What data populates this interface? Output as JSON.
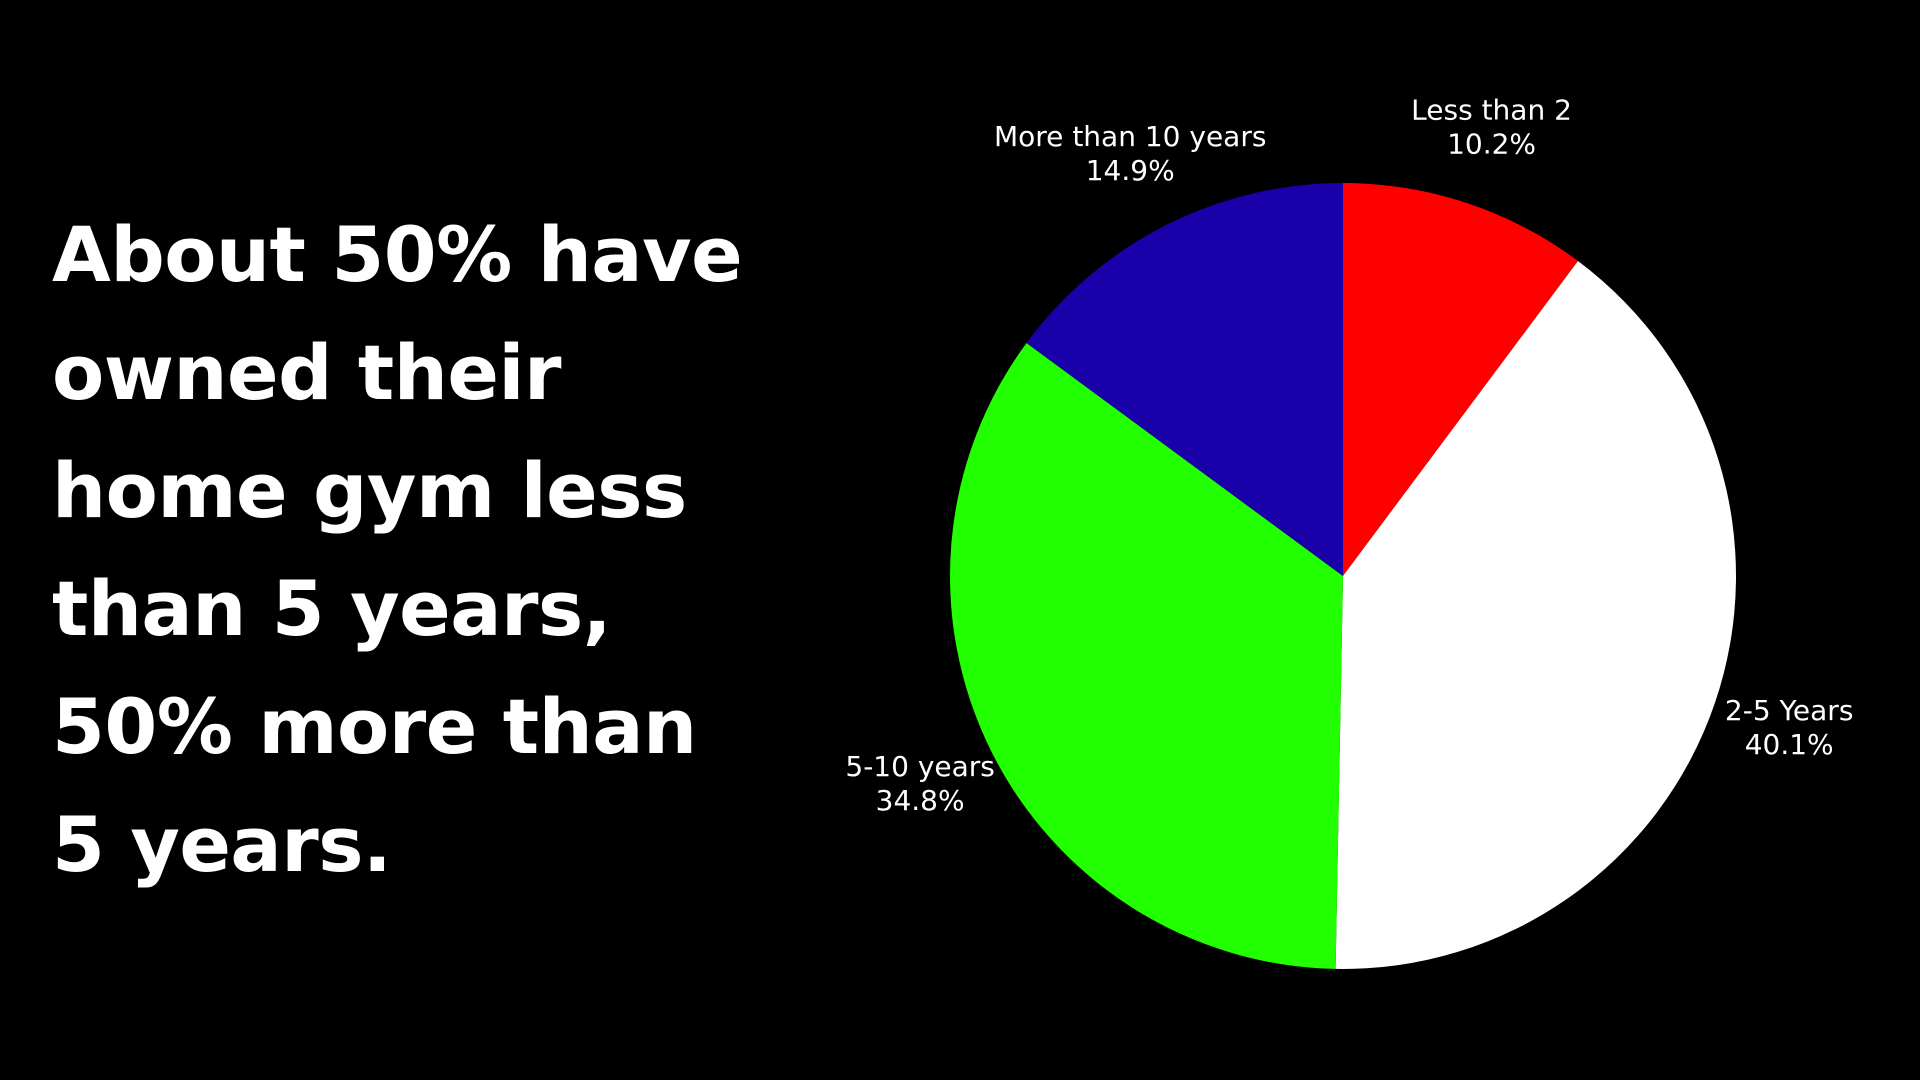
{
  "chart_data": {
    "type": "pie",
    "title": "About 50% have owned their home gym less than 5 years, 50% more than 5 years.",
    "categories": [
      "Less than 2",
      "2-5 Years",
      "5-10 years",
      "More than 10 years"
    ],
    "values": [
      10.2,
      40.1,
      34.8,
      14.9
    ],
    "value_labels": [
      "10.2%",
      "40.1%",
      "34.8%",
      "14.9%"
    ],
    "colors": [
      "#ff0000",
      "#ffffff",
      "#22ff00",
      "#1a00a8"
    ]
  }
}
